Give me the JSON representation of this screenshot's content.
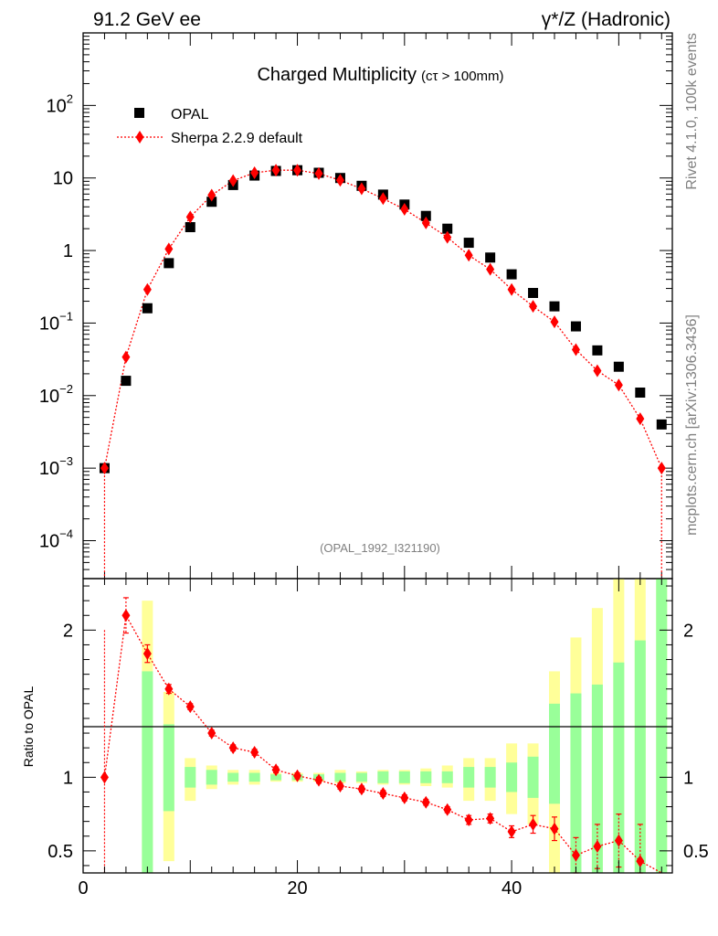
{
  "header": {
    "left": "91.2 GeV ee",
    "right": "γ*/Z (Hadronic)"
  },
  "side_text": {
    "version": "Rivet 4.1.0,  100k events",
    "source": "mcplots.cern.ch [arXiv:1306.3436]"
  },
  "chart_data": [
    {
      "type": "scatter",
      "title": "Charged Multiplicity",
      "title_suffix": "(cτ > 100mm)",
      "analysis_id": "(OPAL_1992_I321190)",
      "xlabel": "",
      "ylabel": "",
      "xlim": [
        0,
        55
      ],
      "ylim": [
        3e-05,
        1000
      ],
      "yscale": "log",
      "legend_position": "top-left",
      "y_tick_labels": [
        {
          "value": 0.0001,
          "mant": "10",
          "exp": "−4"
        },
        {
          "value": 0.001,
          "mant": "10",
          "exp": "−3"
        },
        {
          "value": 0.01,
          "mant": "10",
          "exp": "−2"
        },
        {
          "value": 0.1,
          "mant": "10",
          "exp": "−1"
        },
        {
          "value": 1,
          "mant": "1",
          "exp": ""
        },
        {
          "value": 10,
          "mant": "10",
          "exp": ""
        },
        {
          "value": 100,
          "mant": "10",
          "exp": "2"
        }
      ],
      "series": [
        {
          "name": "OPAL",
          "style": "black-square",
          "color": "#000000",
          "x": [
            2,
            4,
            6,
            8,
            10,
            12,
            14,
            16,
            18,
            20,
            22,
            24,
            26,
            28,
            30,
            32,
            34,
            36,
            38,
            40,
            42,
            44,
            46,
            48,
            50,
            52,
            54
          ],
          "y": [
            0.001,
            0.016,
            0.16,
            0.67,
            2.1,
            4.7,
            8.0,
            10.8,
            12.5,
            12.8,
            11.8,
            10.0,
            7.8,
            5.9,
            4.3,
            3.0,
            2.0,
            1.28,
            0.8,
            0.47,
            0.26,
            0.17,
            0.09,
            0.042,
            0.025,
            0.011,
            0.004
          ]
        },
        {
          "name": "Sherpa 2.2.9 default",
          "style": "red-diamond-dotted",
          "color": "#ff0000",
          "x": [
            2,
            4,
            6,
            8,
            10,
            12,
            14,
            16,
            18,
            20,
            22,
            24,
            26,
            28,
            30,
            32,
            34,
            36,
            38,
            40,
            42,
            44,
            46,
            48,
            50,
            52,
            54
          ],
          "y": [
            0.001,
            0.034,
            0.29,
            1.05,
            2.9,
            5.8,
            9.2,
            11.8,
            12.8,
            12.8,
            11.5,
            9.3,
            7.1,
            5.2,
            3.7,
            2.4,
            1.52,
            0.86,
            0.55,
            0.29,
            0.17,
            0.104,
            0.043,
            0.022,
            0.014,
            0.0048,
            0.001
          ]
        }
      ]
    },
    {
      "type": "scatter",
      "title": "",
      "xlabel": "",
      "ylabel": "Ratio to OPAL",
      "xlim": [
        0,
        55
      ],
      "ylim": [
        0.35,
        2.35
      ],
      "y_ticks": [
        0.5,
        1,
        2
      ],
      "y_tick_labels": [
        "0.5",
        "1",
        "2"
      ],
      "x_ticks": [
        0,
        20,
        40
      ],
      "x_tick_labels": [
        "0",
        "20",
        "40"
      ],
      "reference_line": 1,
      "bands": {
        "x": [
          6,
          8,
          10,
          12,
          14,
          16,
          18,
          20,
          22,
          24,
          26,
          28,
          30,
          32,
          34,
          36,
          38,
          40,
          42,
          44,
          46,
          48,
          50,
          52,
          54
        ],
        "inner": [
          [
            0.3,
            1.72
          ],
          [
            0.77,
            1.36
          ],
          [
            0.93,
            1.07
          ],
          [
            0.95,
            1.05
          ],
          [
            0.97,
            1.03
          ],
          [
            0.97,
            1.03
          ],
          [
            0.98,
            1.02
          ],
          [
            0.98,
            1.02
          ],
          [
            0.98,
            1.02
          ],
          [
            0.97,
            1.03
          ],
          [
            0.97,
            1.03
          ],
          [
            0.96,
            1.04
          ],
          [
            0.96,
            1.04
          ],
          [
            0.96,
            1.04
          ],
          [
            0.96,
            1.04
          ],
          [
            0.93,
            1.07
          ],
          [
            0.93,
            1.07
          ],
          [
            0.9,
            1.1
          ],
          [
            0.86,
            1.14
          ],
          [
            0.82,
            1.5
          ],
          [
            0.3,
            1.57
          ],
          [
            0.3,
            1.63
          ],
          [
            0.3,
            1.78
          ],
          [
            0.3,
            1.93
          ],
          [
            0.3,
            2.35
          ]
        ],
        "outer": [
          [
            0.3,
            2.2
          ],
          [
            0.43,
            1.58
          ],
          [
            0.84,
            1.13
          ],
          [
            0.92,
            1.08
          ],
          [
            0.95,
            1.05
          ],
          [
            0.95,
            1.05
          ],
          [
            0.97,
            1.03
          ],
          [
            0.97,
            1.03
          ],
          [
            0.97,
            1.03
          ],
          [
            0.96,
            1.05
          ],
          [
            0.96,
            1.04
          ],
          [
            0.95,
            1.05
          ],
          [
            0.95,
            1.05
          ],
          [
            0.94,
            1.06
          ],
          [
            0.93,
            1.08
          ],
          [
            0.84,
            1.13
          ],
          [
            0.84,
            1.13
          ],
          [
            0.75,
            1.23
          ],
          [
            0.68,
            1.23
          ],
          [
            0.3,
            1.72
          ],
          [
            0.3,
            1.95
          ],
          [
            0.3,
            2.15
          ],
          [
            0.3,
            2.35
          ],
          [
            0.3,
            2.35
          ],
          [
            0.3,
            2.35
          ]
        ],
        "inner_color": "#99ff99",
        "outer_color": "#ffff99"
      },
      "series": [
        {
          "name": "Sherpa 2.2.9 default / OPAL",
          "color": "#ff0000",
          "x": [
            2,
            4,
            6,
            8,
            10,
            12,
            14,
            16,
            18,
            20,
            22,
            24,
            26,
            28,
            30,
            32,
            34,
            36,
            38,
            40,
            42,
            44,
            46,
            48,
            50,
            52
          ],
          "y": [
            1.0,
            2.1,
            1.84,
            1.6,
            1.48,
            1.3,
            1.2,
            1.17,
            1.05,
            1.01,
            0.98,
            0.94,
            0.92,
            0.89,
            0.86,
            0.83,
            0.78,
            0.71,
            0.72,
            0.63,
            0.68,
            0.65,
            0.47,
            0.53,
            0.57,
            0.43
          ],
          "err": [
            0.6,
            0.12,
            0.06,
            0.03,
            0.02,
            0.02,
            0.02,
            0.02,
            0.02,
            0.02,
            0.02,
            0.02,
            0.02,
            0.02,
            0.02,
            0.02,
            0.02,
            0.03,
            0.03,
            0.04,
            0.06,
            0.08,
            0.12,
            0.15,
            0.18,
            0.25
          ]
        }
      ]
    }
  ]
}
